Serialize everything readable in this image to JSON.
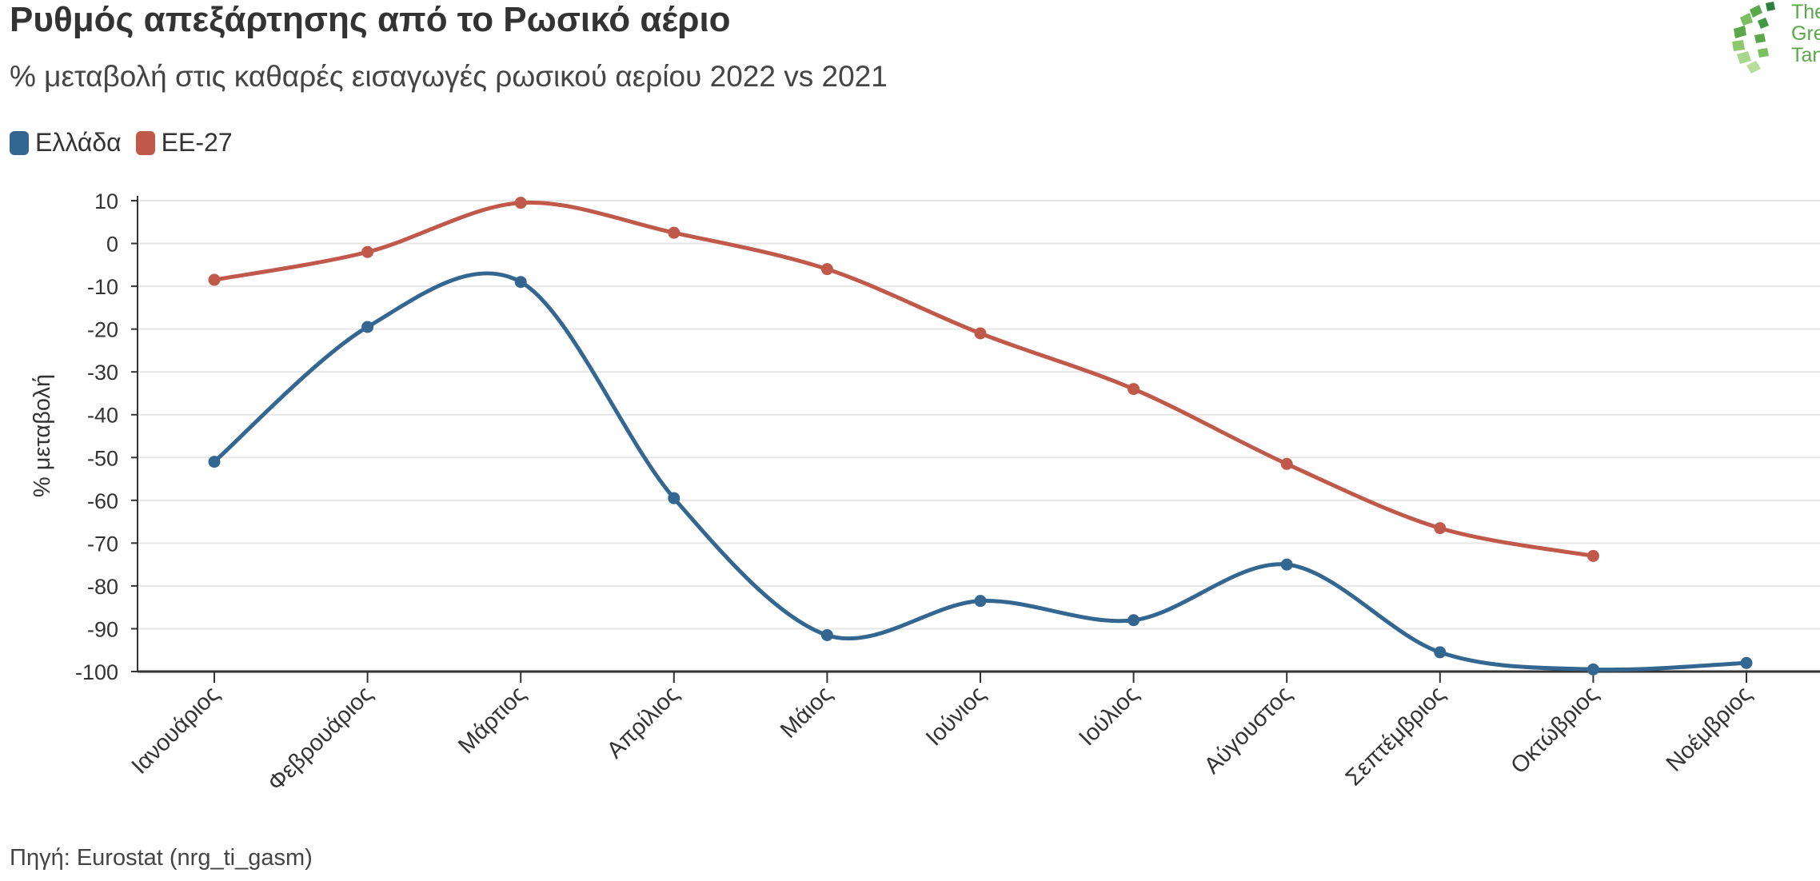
{
  "header": {
    "title": "Ρυθμός απεξάρτησης από το Ρωσικό αέριο",
    "subtitle": "% μεταβολή στις καθαρές εισαγωγές ρωσικού αερίου 2022 vs 2021"
  },
  "logo": {
    "line1": "The",
    "line2": "Gree",
    "line3": "Tank"
  },
  "footer": {
    "source": "Πηγή: Eurostat (nrg_ti_gasm)"
  },
  "colors": {
    "greece": "#336791",
    "eu27": "#c0594a",
    "grid": "#e6e6e6",
    "axis": "#333333",
    "logo_green": "#5aa84a"
  },
  "chart_data": {
    "type": "line",
    "title": "Ρυθμός απεξάρτησης από το Ρωσικό αέριο",
    "subtitle": "% μεταβολή στις καθαρές εισαγωγές ρωσικού αερίου 2022 vs 2021",
    "xlabel": "",
    "ylabel": "% μεταβολή",
    "ylim": [
      -100,
      10
    ],
    "yticks": [
      10,
      0,
      -10,
      -20,
      -30,
      -40,
      -50,
      -60,
      -70,
      -80,
      -90,
      -100
    ],
    "grid": true,
    "legend_position": "top-left",
    "categories": [
      "Ιανουάριος",
      "Φεβρουάριος",
      "Μάρτιος",
      "Απρίλιος",
      "Μάιος",
      "Ιούνιος",
      "Ιούλιος",
      "Αύγουστος",
      "Σεπτέμβριος",
      "Οκτώβριος",
      "Νοέμβριος"
    ],
    "series": [
      {
        "name": "Ελλάδα",
        "color": "#336791",
        "values": [
          -51,
          -19.5,
          -9,
          -59.5,
          -91.5,
          -83.5,
          -88,
          -75,
          -95.5,
          -99.5,
          -98
        ]
      },
      {
        "name": "ΕΕ-27",
        "color": "#c0594a",
        "values": [
          -8.5,
          -2,
          9.5,
          2.5,
          -6,
          -21,
          -34,
          -51.5,
          -66.5,
          -73,
          null
        ]
      }
    ]
  }
}
